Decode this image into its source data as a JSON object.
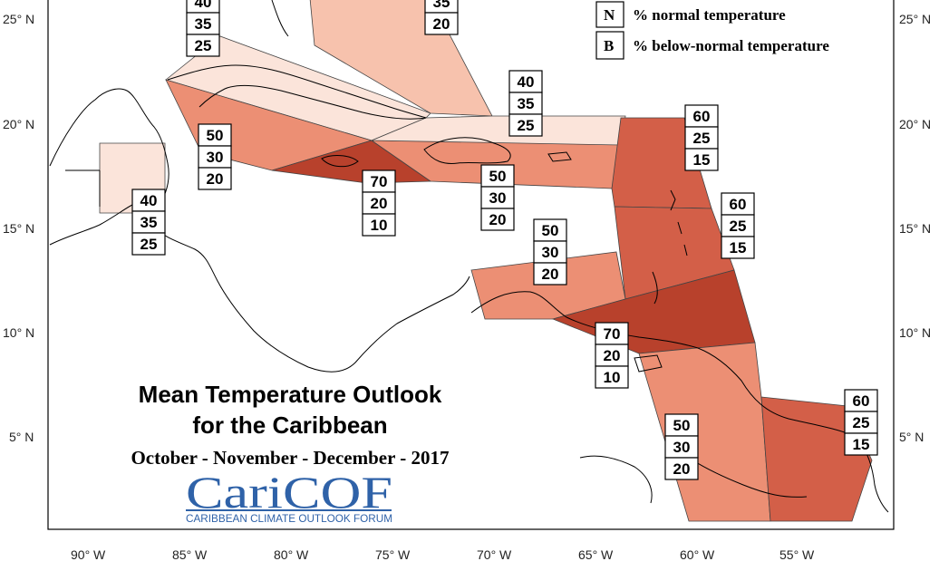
{
  "title_line1": "Mean Temperature Outlook",
  "title_line2": "for the Caribbean",
  "subtitle": "October - November - December - 2017",
  "logo": {
    "name": "CariCOF",
    "tagline": "CARIBBEAN CLIMATE OUTLOOK FORUM"
  },
  "legend": [
    {
      "key": "N",
      "text": "% normal temperature"
    },
    {
      "key": "B",
      "text": "% below-normal temperature"
    }
  ],
  "axes": {
    "lon_labels": [
      "90° W",
      "85° W",
      "80° W",
      "75° W",
      "70° W",
      "65° W",
      "60° W",
      "55° W"
    ],
    "lat_labels": [
      "25° N",
      "20° N",
      "15° N",
      "10° N",
      "5° N"
    ]
  },
  "colors": {
    "above_40": "#fbe4da",
    "above_50": "#ec8f74",
    "above_60": "#d35f48",
    "above_70": "#b8412c"
  },
  "probabilities": [
    {
      "id": "bahamas-west",
      "values": [
        "40",
        "35",
        "25"
      ]
    },
    {
      "id": "bahamas-east",
      "values": [
        "35",
        "20"
      ]
    },
    {
      "id": "cuba",
      "values": [
        "40",
        "35",
        "25"
      ]
    },
    {
      "id": "belize",
      "values": [
        "40",
        "35",
        "25"
      ]
    },
    {
      "id": "cayman",
      "values": [
        "50",
        "30",
        "20"
      ]
    },
    {
      "id": "jamaica",
      "values": [
        "70",
        "20",
        "10"
      ]
    },
    {
      "id": "hispaniola",
      "values": [
        "50",
        "30",
        "20"
      ]
    },
    {
      "id": "turks-caicos",
      "values": [
        "40",
        "35",
        "25"
      ]
    },
    {
      "id": "leeward",
      "values": [
        "60",
        "25",
        "15"
      ]
    },
    {
      "id": "windward",
      "values": [
        "60",
        "25",
        "15"
      ]
    },
    {
      "id": "abc-islands",
      "values": [
        "50",
        "30",
        "20"
      ]
    },
    {
      "id": "trinidad",
      "values": [
        "70",
        "20",
        "10"
      ]
    },
    {
      "id": "guyana",
      "values": [
        "50",
        "30",
        "20"
      ]
    },
    {
      "id": "suriname",
      "values": [
        "60",
        "25",
        "15"
      ]
    }
  ]
}
